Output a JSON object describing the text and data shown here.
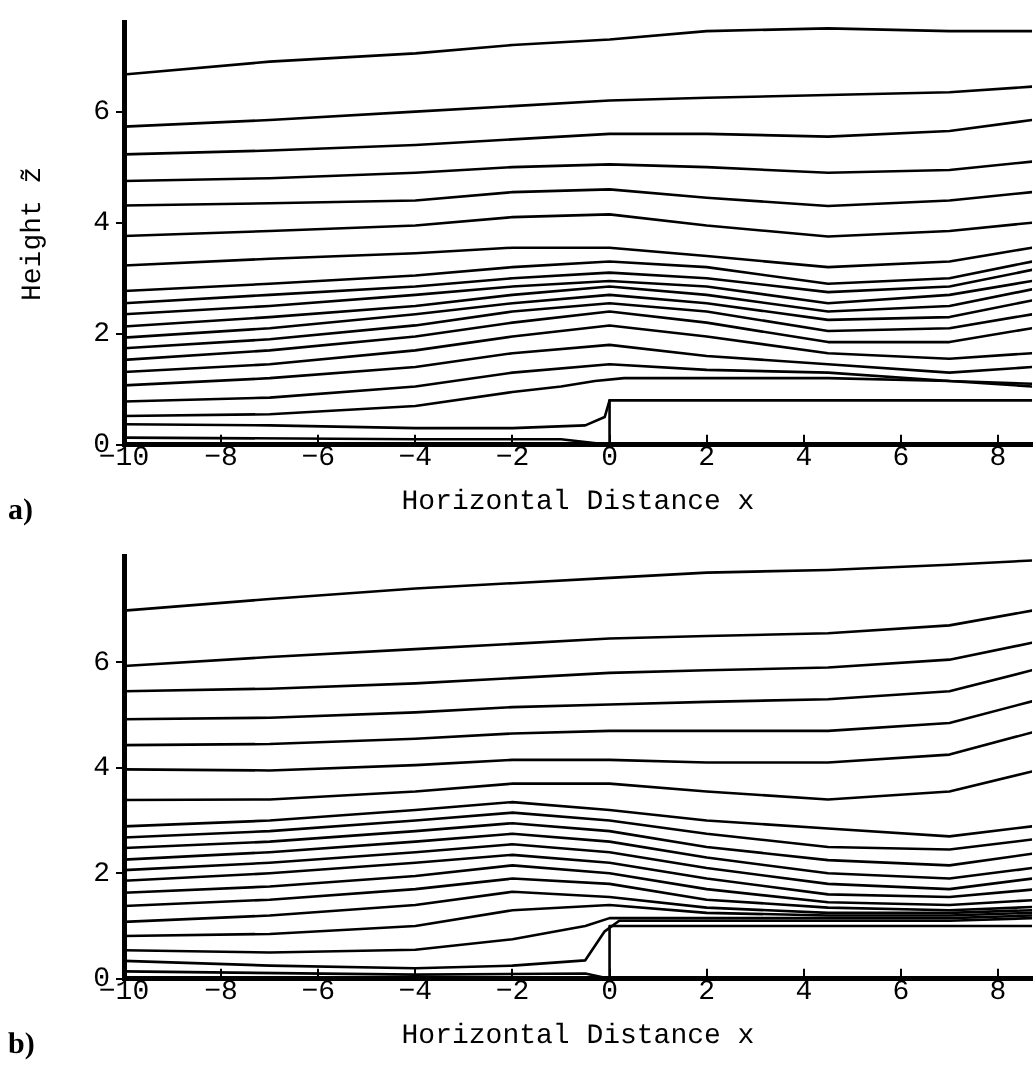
{
  "chart_data": [
    {
      "type": "line",
      "ylabel": "Height z̃",
      "xlabel": "Horizontal Distance x",
      "annotations": [
        "a)"
      ],
      "legend": false,
      "grid": false,
      "marker": "none",
      "line_style": "solid",
      "xlim": [
        -10,
        8.7
      ],
      "xticks": [
        -10,
        -8,
        -6,
        -4,
        -2,
        0,
        2,
        4,
        6,
        8
      ],
      "ylim": [
        0,
        7.6
      ],
      "yticks": [
        0,
        2,
        4,
        6
      ],
      "x": [
        -10,
        -7,
        -4,
        -2,
        0,
        2,
        4.5,
        7,
        8.7
      ],
      "series": [
        {
          "color": "#000000",
          "values": [
            6.67,
            6.9,
            7.05,
            7.2,
            7.3,
            7.45,
            7.5,
            7.45,
            7.45
          ]
        },
        {
          "color": "#000000",
          "values": [
            5.73,
            5.85,
            6.0,
            6.1,
            6.2,
            6.25,
            6.3,
            6.35,
            6.45
          ]
        },
        {
          "color": "#000000",
          "values": [
            5.23,
            5.3,
            5.4,
            5.5,
            5.6,
            5.6,
            5.55,
            5.65,
            5.85
          ]
        },
        {
          "color": "#000000",
          "values": [
            4.75,
            4.8,
            4.9,
            5.0,
            5.05,
            5.0,
            4.9,
            4.95,
            5.1
          ]
        },
        {
          "color": "#000000",
          "values": [
            4.31,
            4.35,
            4.4,
            4.55,
            4.6,
            4.45,
            4.3,
            4.4,
            4.55
          ]
        },
        {
          "color": "#000000",
          "values": [
            3.76,
            3.85,
            3.95,
            4.1,
            4.15,
            3.95,
            3.75,
            3.85,
            4.0
          ]
        },
        {
          "color": "#000000",
          "values": [
            3.23,
            3.35,
            3.45,
            3.55,
            3.55,
            3.4,
            3.2,
            3.3,
            3.55
          ]
        },
        {
          "color": "#000000",
          "values": [
            2.77,
            2.9,
            3.05,
            3.2,
            3.3,
            3.2,
            2.9,
            3.0,
            3.3
          ]
        },
        {
          "color": "#000000",
          "values": [
            2.55,
            2.7,
            2.85,
            3.0,
            3.1,
            3.0,
            2.75,
            2.85,
            3.15
          ]
        },
        {
          "color": "#000000",
          "values": [
            2.35,
            2.5,
            2.7,
            2.85,
            2.95,
            2.85,
            2.55,
            2.7,
            2.95
          ]
        },
        {
          "color": "#000000",
          "values": [
            2.13,
            2.3,
            2.5,
            2.7,
            2.85,
            2.7,
            2.4,
            2.5,
            2.8
          ]
        },
        {
          "color": "#000000",
          "values": [
            1.93,
            2.1,
            2.35,
            2.55,
            2.7,
            2.55,
            2.25,
            2.3,
            2.6
          ]
        },
        {
          "color": "#000000",
          "values": [
            1.74,
            1.9,
            2.15,
            2.4,
            2.55,
            2.4,
            2.05,
            2.1,
            2.35
          ]
        },
        {
          "color": "#000000",
          "values": [
            1.53,
            1.7,
            1.95,
            2.2,
            2.4,
            2.2,
            1.85,
            1.85,
            2.1
          ]
        },
        {
          "color": "#000000",
          "values": [
            1.31,
            1.45,
            1.7,
            1.95,
            2.15,
            1.95,
            1.65,
            1.55,
            1.65
          ]
        },
        {
          "color": "#000000",
          "values": [
            1.07,
            1.2,
            1.4,
            1.65,
            1.8,
            1.6,
            1.45,
            1.3,
            1.4
          ]
        },
        {
          "color": "#000000",
          "values": [
            0.78,
            0.85,
            1.05,
            1.3,
            1.45,
            1.35,
            1.3,
            1.15,
            1.1
          ]
        },
        {
          "color": "#000000",
          "x": [
            -10,
            -7,
            -4,
            -2,
            -1,
            -0.3,
            0.3,
            2,
            4.5,
            7,
            8.7
          ],
          "values": [
            0.52,
            0.55,
            0.7,
            0.95,
            1.05,
            1.15,
            1.2,
            1.2,
            1.2,
            1.15,
            1.05
          ]
        },
        {
          "color": "#000000",
          "x": [
            -10,
            -7,
            -4,
            -2,
            -0.5,
            -0.1,
            0
          ],
          "values": [
            0.37,
            0.35,
            0.3,
            0.3,
            0.35,
            0.5,
            0.8
          ]
        },
        {
          "color": "#000000",
          "x": [
            -10,
            -4,
            -1,
            0
          ],
          "values": [
            0.13,
            0.1,
            0.1,
            0
          ]
        },
        {
          "color": "#000000",
          "x": [
            0,
            0,
            8.7
          ],
          "values": [
            0,
            0.8,
            0.8
          ]
        }
      ]
    },
    {
      "type": "line",
      "xlabel": "Horizontal Distance x",
      "annotations": [
        "b)"
      ],
      "legend": false,
      "grid": false,
      "marker": "none",
      "line_style": "solid",
      "xlim": [
        -10,
        8.7
      ],
      "xticks": [
        -10,
        -8,
        -6,
        -4,
        -2,
        0,
        2,
        4,
        6,
        8
      ],
      "ylim": [
        0,
        8
      ],
      "yticks": [
        0,
        2,
        4,
        6
      ],
      "x": [
        -10,
        -7,
        -4,
        -2,
        0,
        2,
        4.5,
        7,
        8.7
      ],
      "series": [
        {
          "color": "#000000",
          "values": [
            6.98,
            7.2,
            7.4,
            7.5,
            7.6,
            7.7,
            7.75,
            7.85,
            7.93
          ]
        },
        {
          "color": "#000000",
          "values": [
            5.93,
            6.1,
            6.25,
            6.35,
            6.45,
            6.5,
            6.55,
            6.7,
            6.98
          ]
        },
        {
          "color": "#000000",
          "values": [
            5.45,
            5.5,
            5.6,
            5.7,
            5.8,
            5.85,
            5.9,
            6.05,
            6.37
          ]
        },
        {
          "color": "#000000",
          "values": [
            4.92,
            4.95,
            5.05,
            5.15,
            5.2,
            5.25,
            5.3,
            5.45,
            5.85
          ]
        },
        {
          "color": "#000000",
          "values": [
            4.43,
            4.45,
            4.55,
            4.65,
            4.7,
            4.7,
            4.7,
            4.85,
            5.26
          ]
        },
        {
          "color": "#000000",
          "values": [
            3.97,
            3.95,
            4.05,
            4.15,
            4.15,
            4.1,
            4.1,
            4.25,
            4.67
          ]
        },
        {
          "color": "#000000",
          "values": [
            3.39,
            3.4,
            3.55,
            3.7,
            3.7,
            3.55,
            3.4,
            3.55,
            3.93
          ]
        },
        {
          "color": "#000000",
          "values": [
            2.89,
            3.0,
            3.2,
            3.35,
            3.2,
            3.0,
            2.85,
            2.7,
            2.89
          ]
        },
        {
          "color": "#000000",
          "values": [
            2.68,
            2.8,
            3.0,
            3.15,
            3.0,
            2.75,
            2.5,
            2.45,
            2.64
          ]
        },
        {
          "color": "#000000",
          "values": [
            2.48,
            2.6,
            2.8,
            2.95,
            2.8,
            2.5,
            2.25,
            2.15,
            2.37
          ]
        },
        {
          "color": "#000000",
          "values": [
            2.26,
            2.4,
            2.6,
            2.75,
            2.6,
            2.3,
            2.0,
            1.9,
            2.1
          ]
        },
        {
          "color": "#000000",
          "values": [
            2.06,
            2.2,
            2.4,
            2.55,
            2.4,
            2.1,
            1.8,
            1.7,
            1.9
          ]
        },
        {
          "color": "#000000",
          "values": [
            1.86,
            2.0,
            2.2,
            2.35,
            2.2,
            1.9,
            1.6,
            1.55,
            1.69
          ]
        },
        {
          "color": "#000000",
          "values": [
            1.63,
            1.75,
            1.95,
            2.15,
            2.0,
            1.7,
            1.45,
            1.4,
            1.49
          ]
        },
        {
          "color": "#000000",
          "values": [
            1.38,
            1.5,
            1.7,
            1.9,
            1.8,
            1.5,
            1.35,
            1.3,
            1.36
          ]
        },
        {
          "color": "#000000",
          "values": [
            1.08,
            1.2,
            1.4,
            1.65,
            1.55,
            1.35,
            1.25,
            1.25,
            1.3
          ]
        },
        {
          "color": "#000000",
          "values": [
            0.81,
            0.85,
            1.0,
            1.3,
            1.4,
            1.25,
            1.2,
            1.2,
            1.25
          ]
        },
        {
          "color": "#000000",
          "x": [
            -10,
            -7,
            -4,
            -2,
            -0.5,
            0,
            2,
            4.5,
            7,
            8.7
          ],
          "values": [
            0.54,
            0.5,
            0.55,
            0.75,
            1.0,
            1.15,
            1.15,
            1.15,
            1.15,
            1.2
          ]
        },
        {
          "color": "#000000",
          "x": [
            -10,
            -7,
            -4,
            -2,
            -0.5,
            -0.1,
            0.2,
            2,
            4.5,
            7,
            8.7
          ],
          "values": [
            0.34,
            0.25,
            0.2,
            0.25,
            0.35,
            0.9,
            1.1,
            1.1,
            1.1,
            1.1,
            1.15
          ]
        },
        {
          "color": "#000000",
          "x": [
            -10,
            -4,
            -0.5,
            0
          ],
          "values": [
            0.14,
            0.08,
            0.1,
            0
          ]
        },
        {
          "color": "#000000",
          "x": [
            0,
            0,
            8.7
          ],
          "values": [
            0,
            1.0,
            1.0
          ]
        }
      ]
    }
  ]
}
